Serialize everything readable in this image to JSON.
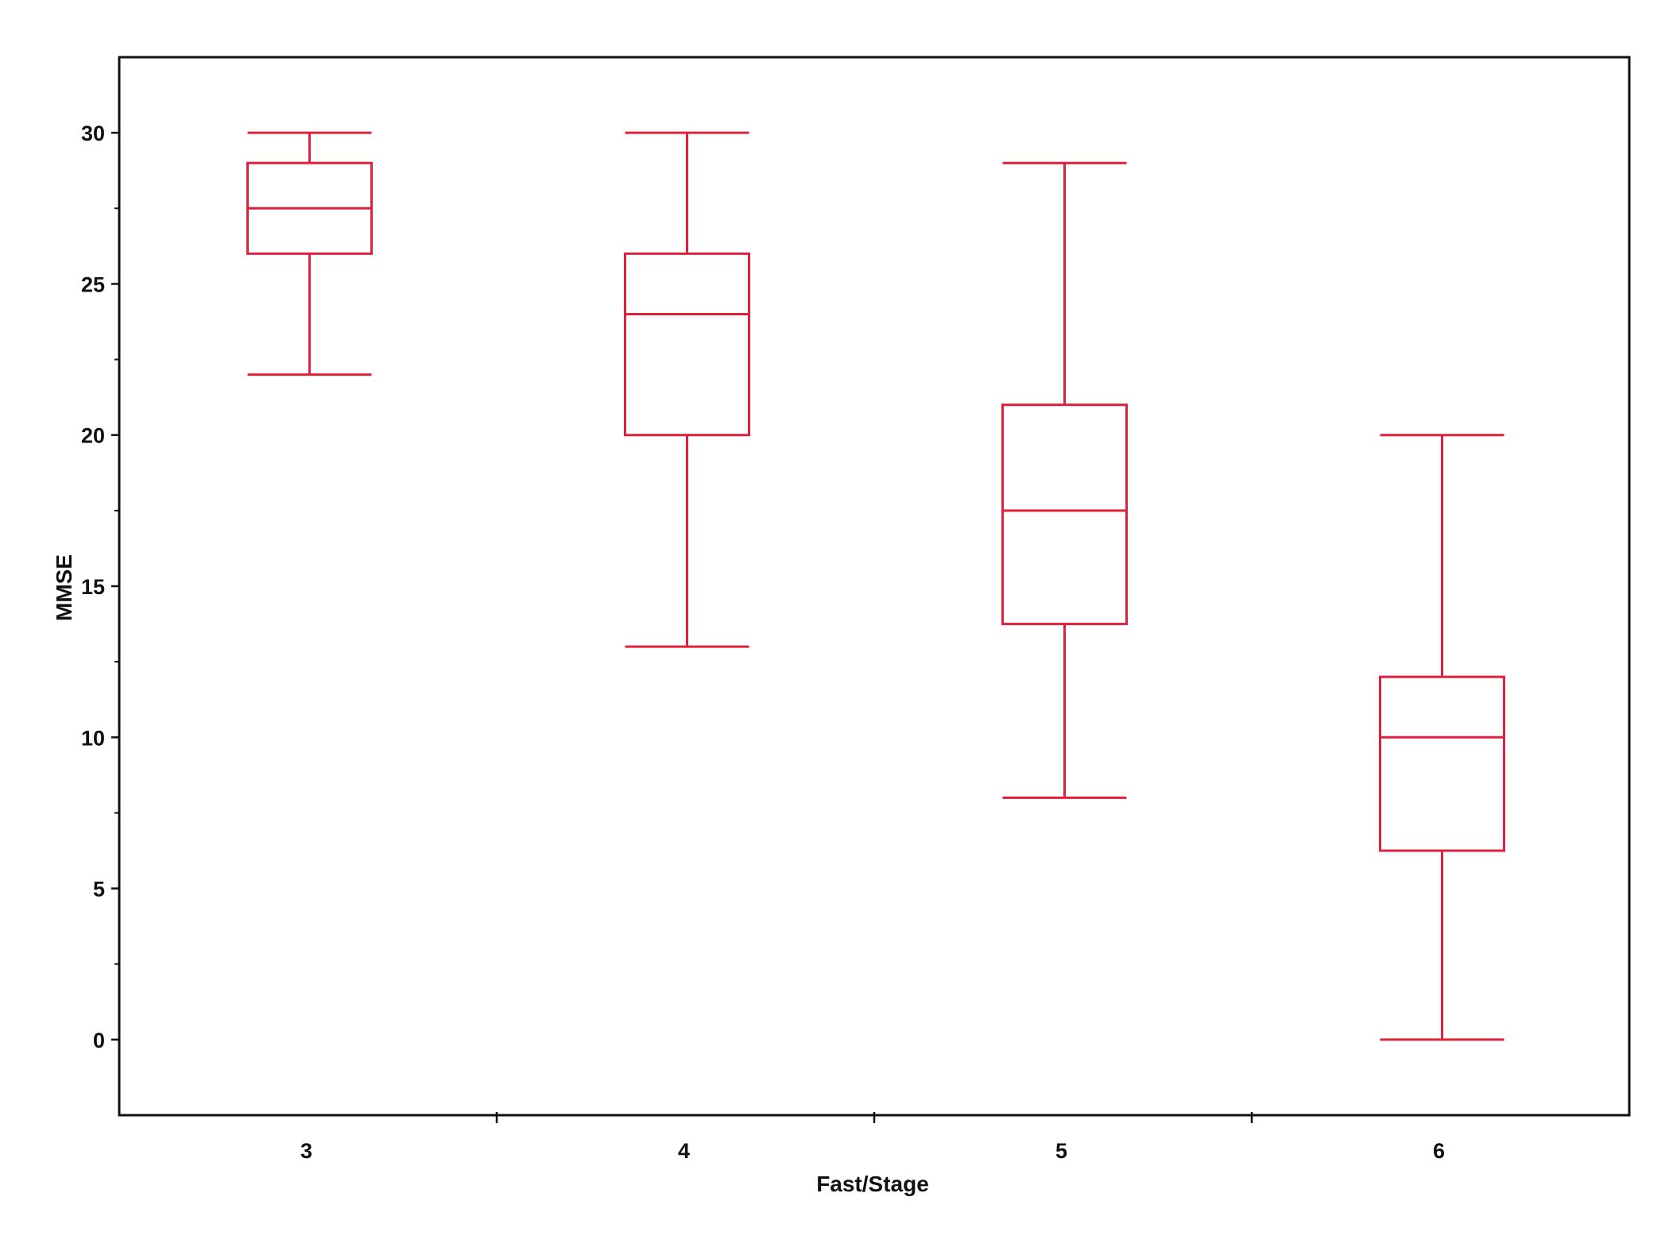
{
  "chart_data": {
    "type": "box",
    "xlabel": "Fast/Stage",
    "ylabel": "MMSE",
    "ylim": [
      -2.5,
      32.5
    ],
    "yticks": [
      0,
      5,
      10,
      15,
      20,
      25,
      30
    ],
    "categories": [
      "3",
      "4",
      "5",
      "6"
    ],
    "boxes": [
      {
        "category": "3",
        "min": 22,
        "q1": 26,
        "median": 27.5,
        "q3": 29,
        "max": 30
      },
      {
        "category": "4",
        "min": 13,
        "q1": 20,
        "median": 24,
        "q3": 26,
        "max": 30
      },
      {
        "category": "5",
        "min": 8,
        "q1": 13.75,
        "median": 17.5,
        "q3": 21,
        "max": 29
      },
      {
        "category": "6",
        "min": 0,
        "q1": 6.25,
        "median": 10,
        "q3": 12,
        "max": 20
      }
    ],
    "grid": false,
    "box_color": "#e0203c",
    "axis_color": "#111111"
  }
}
